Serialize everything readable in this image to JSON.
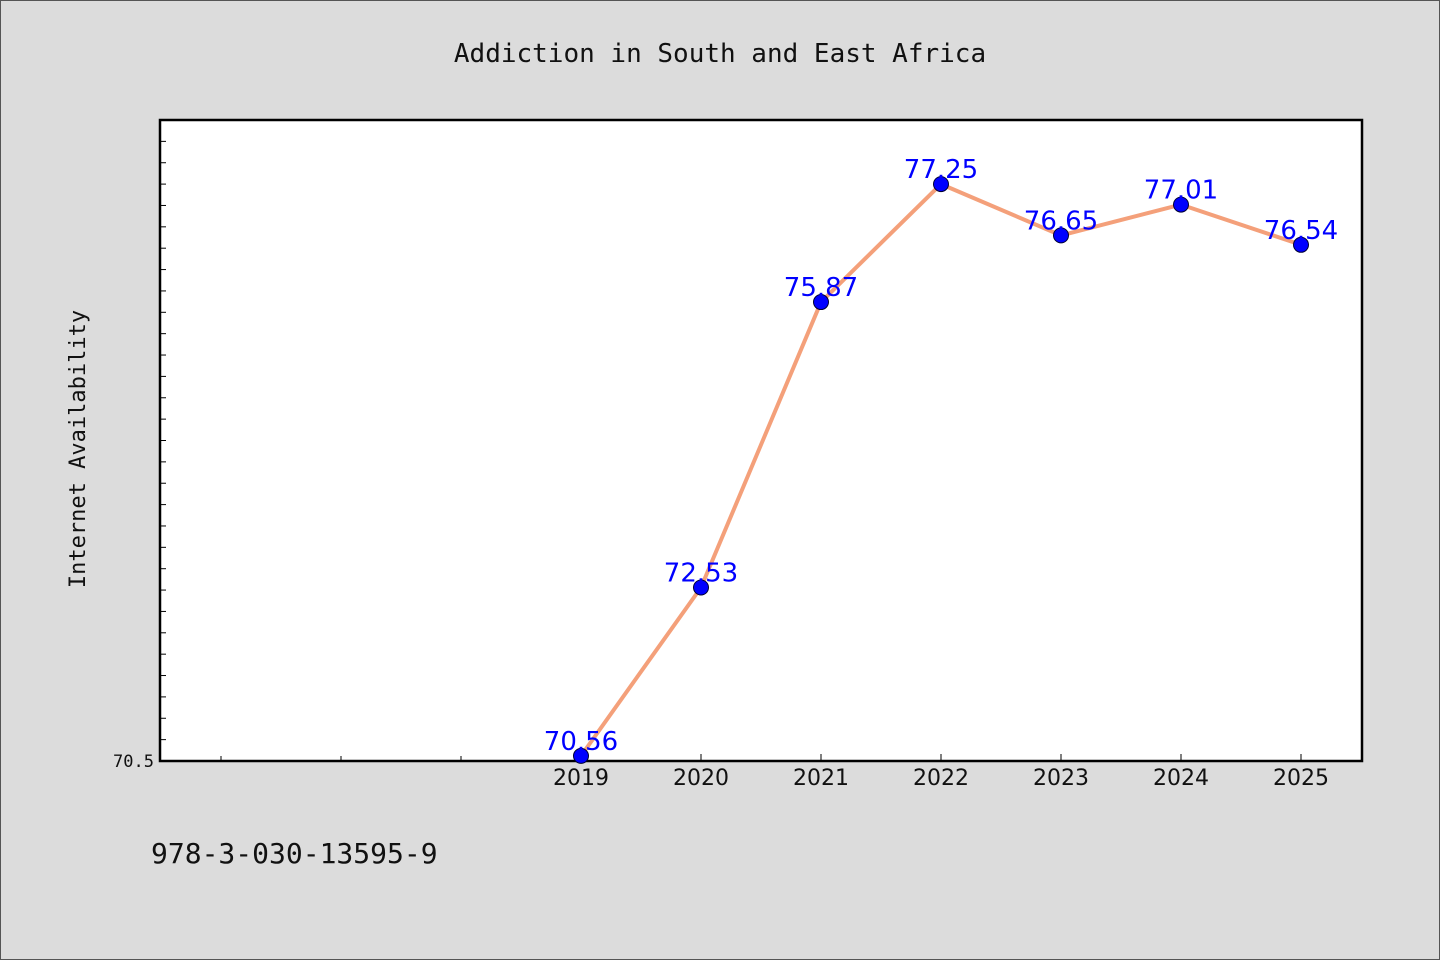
{
  "chart_data": {
    "type": "line",
    "title": "Addiction in South and East Africa",
    "xlabel": "",
    "ylabel": "Internet Availability",
    "x": [
      "2019",
      "2020",
      "2021",
      "2022",
      "2023",
      "2024",
      "2025"
    ],
    "series": [
      {
        "values": [
          70.56,
          72.53,
          75.87,
          77.25,
          76.65,
          77.01,
          76.54
        ],
        "labels": [
          "70.56",
          "72.53",
          "75.87",
          "77.25",
          "76.65",
          "77.01",
          "76.54"
        ],
        "line_color": "#f4a07a",
        "marker_color": "#0000ff"
      }
    ],
    "ylim": [
      70.5,
      78.0
    ],
    "ytick_labels": [
      "70.5"
    ],
    "grid": false,
    "legend": "none"
  },
  "footnote": "978-3-030-13595-9",
  "colors": {
    "background": "#dcdcdc",
    "plot_background": "#ffffff",
    "data_label": "#0000ff"
  }
}
